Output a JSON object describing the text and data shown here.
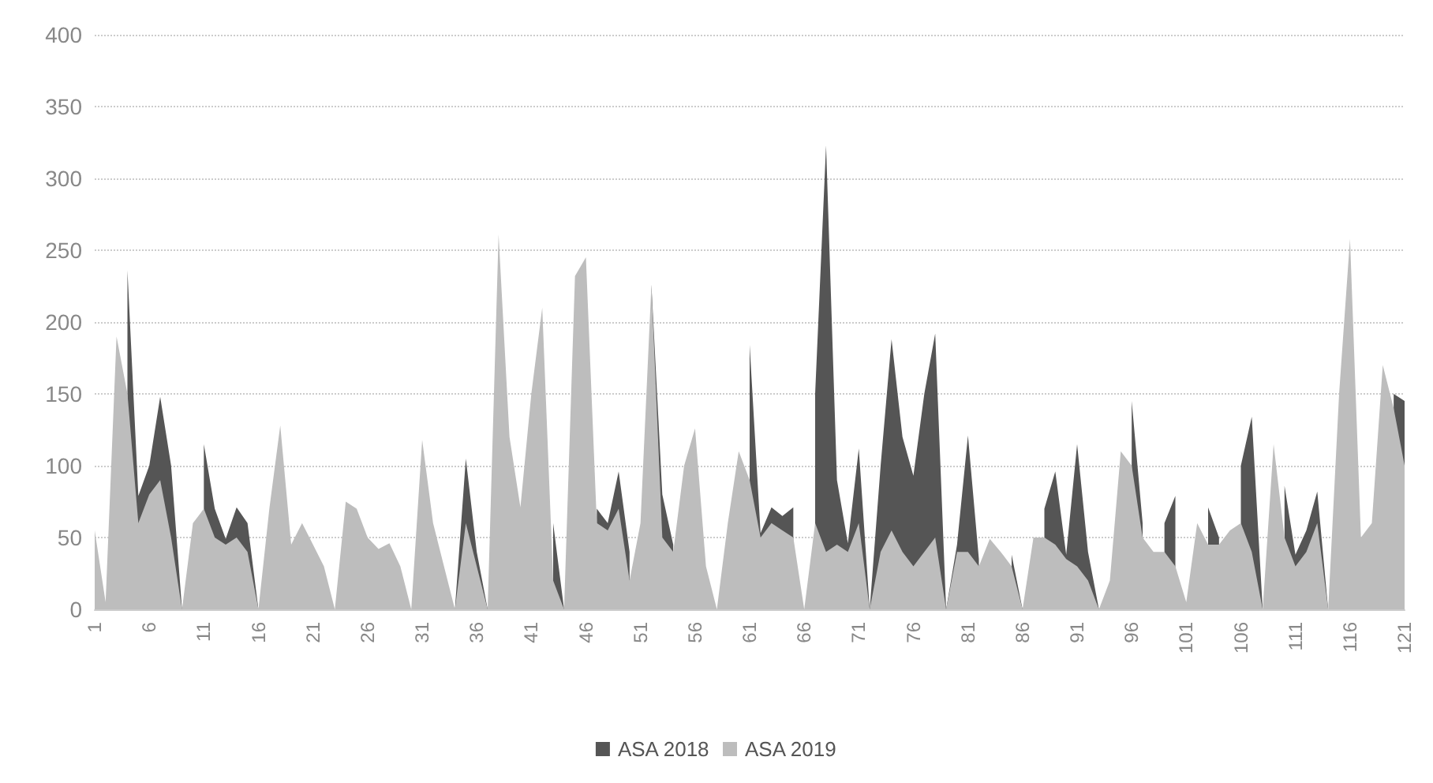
{
  "chart_data": {
    "type": "area",
    "categories": [
      "1",
      null,
      null,
      null,
      null,
      "6",
      null,
      null,
      null,
      null,
      "11",
      null,
      null,
      null,
      null,
      "16",
      null,
      null,
      null,
      null,
      "21",
      null,
      null,
      null,
      null,
      "26",
      null,
      null,
      null,
      null,
      "31",
      null,
      null,
      null,
      null,
      "36",
      null,
      null,
      null,
      null,
      "41",
      null,
      null,
      null,
      null,
      "46",
      null,
      null,
      null,
      null,
      "51",
      null,
      null,
      null,
      null,
      "56",
      null,
      null,
      null,
      null,
      "61",
      null,
      null,
      null,
      null,
      "66",
      null,
      null,
      null,
      null,
      "71",
      null,
      null,
      null,
      null,
      "76",
      null,
      null,
      null,
      null,
      "81",
      null,
      null,
      null,
      null,
      "86",
      null,
      null,
      null,
      null,
      "91",
      null,
      null,
      null,
      null,
      "96",
      null,
      null,
      null,
      null,
      "101",
      null,
      null,
      null,
      null,
      "106",
      null,
      null,
      null,
      null,
      "111",
      null,
      null,
      null,
      null,
      "116",
      null,
      null,
      null,
      null,
      "121"
    ],
    "series": [
      {
        "name": "ASA 2018",
        "color": "#555555",
        "values": [
          null,
          null,
          null,
          236,
          79,
          100,
          148,
          100,
          0,
          null,
          115,
          70,
          49,
          71,
          60,
          0,
          null,
          null,
          null,
          null,
          null,
          null,
          null,
          null,
          null,
          null,
          null,
          null,
          null,
          null,
          null,
          null,
          null,
          0,
          105,
          40,
          0,
          null,
          null,
          null,
          null,
          null,
          60,
          0,
          null,
          null,
          70,
          60,
          96,
          40,
          null,
          226,
          80,
          45,
          null,
          null,
          null,
          null,
          null,
          null,
          184,
          53,
          71,
          65,
          71,
          null,
          150,
          323,
          90,
          46,
          112,
          0,
          100,
          188,
          120,
          93,
          150,
          192,
          0,
          45,
          121,
          35,
          null,
          null,
          38,
          0,
          null,
          70,
          96,
          38,
          115,
          40,
          0,
          null,
          null,
          145,
          60,
          null,
          60,
          79,
          null,
          null,
          71,
          50,
          null,
          100,
          134,
          0,
          null,
          86,
          38,
          55,
          82,
          0,
          null,
          null,
          null,
          null,
          null,
          150,
          145
        ]
      },
      {
        "name": "ASA 2019",
        "color": "#bdbdbd",
        "values": [
          55,
          5,
          190,
          150,
          60,
          80,
          90,
          50,
          0,
          60,
          70,
          50,
          45,
          50,
          40,
          0,
          70,
          128,
          45,
          60,
          45,
          30,
          0,
          75,
          70,
          50,
          42,
          46,
          30,
          0,
          118,
          60,
          30,
          0,
          60,
          30,
          0,
          261,
          120,
          71,
          150,
          210,
          20,
          0,
          232,
          245,
          60,
          55,
          70,
          20,
          60,
          226,
          50,
          40,
          100,
          126,
          30,
          0,
          60,
          110,
          90,
          50,
          60,
          55,
          50,
          0,
          60,
          40,
          45,
          40,
          60,
          0,
          40,
          55,
          40,
          30,
          40,
          50,
          0,
          40,
          40,
          30,
          49,
          40,
          30,
          0,
          50,
          50,
          45,
          35,
          30,
          20,
          0,
          20,
          110,
          100,
          50,
          40,
          40,
          30,
          5,
          60,
          45,
          45,
          55,
          60,
          40,
          0,
          115,
          50,
          30,
          40,
          60,
          0,
          150,
          258,
          50,
          60,
          170,
          140,
          100
        ]
      }
    ],
    "ylim": [
      0,
      400
    ],
    "yticks": [
      0,
      50,
      100,
      150,
      200,
      250,
      300,
      350,
      400
    ],
    "grid": "y",
    "legend": "bottom"
  }
}
